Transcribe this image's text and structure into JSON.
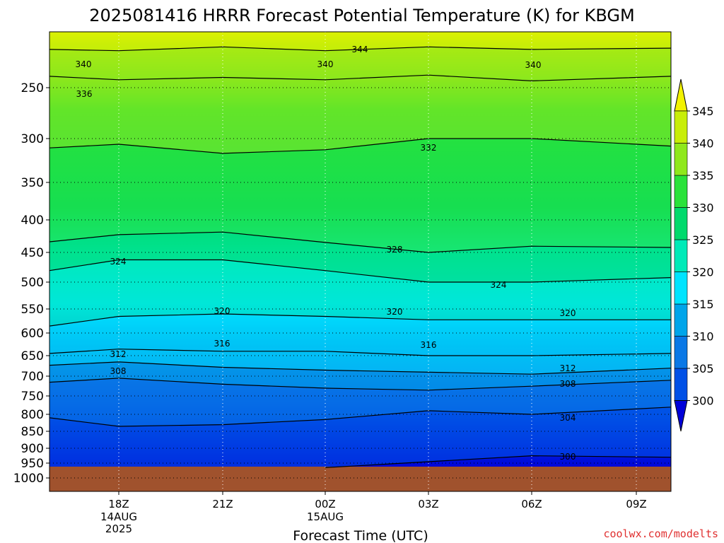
{
  "chart_data": {
    "type": "heatmap",
    "title": "2025081416 HRRR Forecast Potential Temperature (K) for KBGM",
    "xlabel": "Forecast Time (UTC)",
    "ylabel": "",
    "y_ticks": [
      "250",
      "300",
      "350",
      "400",
      "450",
      "500",
      "550",
      "600",
      "650",
      "700",
      "750",
      "800",
      "850",
      "900",
      "950",
      "1000"
    ],
    "y_scale": "log-pressure (hPa, reversed)",
    "x_ticks": [
      {
        "label": "18Z",
        "sub": [
          "14AUG",
          "2025"
        ]
      },
      {
        "label": "21Z",
        "sub": []
      },
      {
        "label": "00Z",
        "sub": [
          "15AUG"
        ]
      },
      {
        "label": "03Z",
        "sub": []
      },
      {
        "label": "06Z",
        "sub": []
      },
      {
        "label": "09Z",
        "sub": []
      }
    ],
    "grid": true,
    "colorbar": {
      "labels": [
        "300",
        "305",
        "310",
        "315",
        "320",
        "325",
        "330",
        "335",
        "340",
        "345"
      ],
      "colors": [
        "#0000d8",
        "#0050e6",
        "#0a78e6",
        "#00a5ea",
        "#00e4ff",
        "#00eab8",
        "#00da6c",
        "#2ae23a",
        "#8fe81c",
        "#c8ee08",
        "#f2f200"
      ]
    },
    "surface_color": "#a0522d",
    "contour_labels": [
      "344",
      "340",
      "340",
      "340",
      "336",
      "332",
      "328",
      "324",
      "324",
      "320",
      "320",
      "320",
      "316",
      "316",
      "312",
      "312",
      "308",
      "308",
      "304",
      "300"
    ],
    "isentropes_K": [
      {
        "value": 344,
        "pressure_hPa": [
          198,
          197,
          196,
          198,
          196,
          195,
          197
        ]
      },
      {
        "value": 340,
        "pressure_hPa": [
          218,
          219,
          216,
          219,
          216,
          218,
          217
        ]
      },
      {
        "value": 336,
        "pressure_hPa": [
          240,
          243,
          241,
          243,
          239,
          244,
          240
        ]
      },
      {
        "value": 332,
        "pressure_hPa": [
          310,
          306,
          316,
          312,
          300,
          300,
          308
        ]
      },
      {
        "value": 328,
        "pressure_hPa": [
          433,
          422,
          418,
          434,
          450,
          440,
          442
        ]
      },
      {
        "value": 324,
        "pressure_hPa": [
          480,
          462,
          462,
          480,
          500,
          500,
          492
        ]
      },
      {
        "value": 320,
        "pressure_hPa": [
          585,
          565,
          560,
          565,
          572,
          572,
          572
        ]
      },
      {
        "value": 316,
        "pressure_hPa": [
          645,
          635,
          640,
          640,
          650,
          650,
          645
        ]
      },
      {
        "value": 312,
        "pressure_hPa": [
          673,
          665,
          678,
          685,
          690,
          695,
          680
        ]
      },
      {
        "value": 308,
        "pressure_hPa": [
          715,
          705,
          720,
          730,
          735,
          725,
          710
        ]
      },
      {
        "value": 304,
        "pressure_hPa": [
          810,
          835,
          830,
          815,
          790,
          800,
          780
        ]
      },
      {
        "value": 300,
        "pressure_hPa": [
          null,
          null,
          null,
          965,
          945,
          925,
          930
        ]
      }
    ],
    "x_range_hours": [
      16,
      10
    ],
    "y_range_hPa": [
      200,
      1050
    ]
  },
  "footer": {
    "source": "coolwx.com/modelts"
  }
}
